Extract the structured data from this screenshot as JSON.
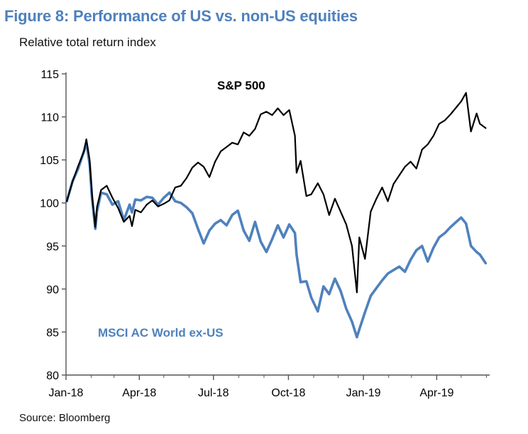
{
  "header": {
    "title": "Figure 8: Performance of US vs. non-US equities",
    "subtitle": "Relative total return index"
  },
  "footer": {
    "source": "Source: Bloomberg"
  },
  "colors": {
    "title": "#4f81bd",
    "sp500": "#000000",
    "msci": "#4f81bd"
  },
  "chart_data": {
    "type": "line",
    "title": "Figure 8: Performance of US vs. non-US equities",
    "subtitle": "Relative total return index",
    "xlabel": "",
    "ylabel": "",
    "ylim": [
      80,
      115
    ],
    "yticks": [
      80,
      85,
      90,
      95,
      100,
      105,
      110,
      115
    ],
    "xticks": [
      "Jan-18",
      "Apr-18",
      "Jul-18",
      "Oct-18",
      "Jan-19",
      "Apr-19"
    ],
    "grid": false,
    "x": [
      "2018-01-02",
      "2018-01-09",
      "2018-01-16",
      "2018-01-23",
      "2018-01-26",
      "2018-01-30",
      "2018-02-02",
      "2018-02-06",
      "2018-02-08",
      "2018-02-13",
      "2018-02-20",
      "2018-02-27",
      "2018-03-06",
      "2018-03-13",
      "2018-03-20",
      "2018-03-23",
      "2018-03-27",
      "2018-04-03",
      "2018-04-10",
      "2018-04-17",
      "2018-04-24",
      "2018-05-01",
      "2018-05-08",
      "2018-05-15",
      "2018-05-22",
      "2018-05-29",
      "2018-06-05",
      "2018-06-12",
      "2018-06-19",
      "2018-06-26",
      "2018-07-03",
      "2018-07-10",
      "2018-07-17",
      "2018-07-24",
      "2018-07-31",
      "2018-08-07",
      "2018-08-14",
      "2018-08-21",
      "2018-08-28",
      "2018-09-04",
      "2018-09-11",
      "2018-09-18",
      "2018-09-25",
      "2018-10-02",
      "2018-10-09",
      "2018-10-11",
      "2018-10-16",
      "2018-10-23",
      "2018-10-29",
      "2018-11-06",
      "2018-11-13",
      "2018-11-20",
      "2018-11-27",
      "2018-12-04",
      "2018-12-11",
      "2018-12-18",
      "2018-12-24",
      "2018-12-27",
      "2019-01-03",
      "2019-01-10",
      "2019-01-17",
      "2019-01-24",
      "2019-01-31",
      "2019-02-07",
      "2019-02-14",
      "2019-02-21",
      "2019-02-28",
      "2019-03-07",
      "2019-03-14",
      "2019-03-21",
      "2019-03-28",
      "2019-04-04",
      "2019-04-11",
      "2019-04-18",
      "2019-04-25",
      "2019-05-01",
      "2019-05-07",
      "2019-05-13",
      "2019-05-20",
      "2019-05-24",
      "2019-05-31"
    ],
    "series": [
      {
        "name": "S&P 500",
        "color": "#000000",
        "values": [
          100.2,
          102.5,
          104.3,
          106.0,
          107.4,
          105.0,
          101.0,
          97.2,
          99.5,
          101.5,
          102.0,
          100.6,
          99.4,
          97.8,
          98.5,
          97.3,
          99.2,
          98.9,
          99.8,
          100.3,
          99.6,
          99.9,
          100.3,
          101.8,
          102.0,
          102.9,
          104.1,
          104.7,
          104.2,
          103.0,
          104.8,
          106.0,
          106.5,
          107.0,
          106.8,
          108.2,
          107.8,
          108.6,
          110.3,
          110.6,
          110.2,
          111.0,
          110.2,
          110.8,
          107.8,
          103.5,
          104.9,
          100.8,
          101.0,
          102.3,
          101.0,
          98.6,
          100.5,
          99.0,
          97.5,
          95.0,
          89.6,
          96.0,
          93.5,
          99.0,
          100.5,
          101.8,
          100.2,
          102.2,
          103.2,
          104.2,
          104.8,
          104.0,
          106.2,
          106.8,
          107.8,
          109.2,
          109.6,
          110.3,
          111.1,
          111.8,
          112.8,
          108.3,
          110.4,
          109.2,
          108.7
        ]
      },
      {
        "name": "MSCI AC World ex-US",
        "color": "#4f81bd",
        "values": [
          100.2,
          102.5,
          104.0,
          106.0,
          107.0,
          104.5,
          100.5,
          97.0,
          99.0,
          101.2,
          101.0,
          99.8,
          100.2,
          98.0,
          99.8,
          98.9,
          100.4,
          100.3,
          100.7,
          100.6,
          99.8,
          100.6,
          101.2,
          100.2,
          100.0,
          99.5,
          98.8,
          97.0,
          95.3,
          96.8,
          97.6,
          98.0,
          97.4,
          98.6,
          99.1,
          96.8,
          95.6,
          97.8,
          95.5,
          94.3,
          95.8,
          97.4,
          96.0,
          97.5,
          96.5,
          94.0,
          90.8,
          90.9,
          89.0,
          87.4,
          90.3,
          89.4,
          91.2,
          89.8,
          87.7,
          86.2,
          84.4,
          85.3,
          87.3,
          89.2,
          90.1,
          91.0,
          91.8,
          92.2,
          92.6,
          92.0,
          93.4,
          94.5,
          95.0,
          93.2,
          94.8,
          96.0,
          96.5,
          97.2,
          97.8,
          98.3,
          97.6,
          95.0,
          94.3,
          94.0,
          93.0
        ]
      }
    ],
    "annotations": [
      {
        "text": "S&P 500",
        "series": "S&P 500"
      },
      {
        "text": "MSCI AC World ex-US",
        "series": "MSCI AC World ex-US"
      }
    ]
  }
}
